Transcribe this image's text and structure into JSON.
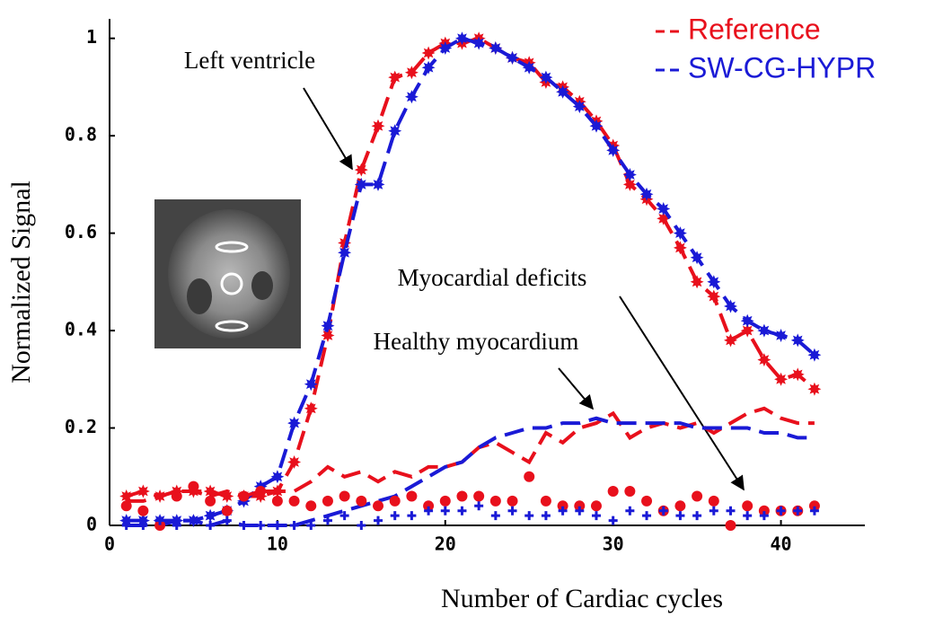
{
  "chart_data": {
    "type": "line",
    "xlabel": "Number of Cardiac cycles",
    "ylabel": "Normalized Signal",
    "x": [
      1,
      2,
      3,
      4,
      5,
      6,
      7,
      8,
      9,
      10,
      11,
      12,
      13,
      14,
      15,
      16,
      17,
      18,
      19,
      20,
      21,
      22,
      23,
      24,
      25,
      26,
      27,
      28,
      29,
      30,
      31,
      32,
      33,
      34,
      35,
      36,
      37,
      38,
      39,
      40,
      41,
      42
    ],
    "xlim": [
      0,
      45
    ],
    "ylim": [
      0,
      1.04
    ],
    "xticks": [
      0,
      10,
      20,
      30,
      40
    ],
    "yticks": [
      0,
      0.2,
      0.4,
      0.6,
      0.8,
      1
    ],
    "legend": "upper right",
    "annotations": [
      "Left ventricle",
      "Myocardial deficits",
      "Healthy myocardium"
    ],
    "series": [
      {
        "name": "Reference",
        "color": "#e8101c",
        "line": "dashed",
        "marker": "star",
        "values": [
          0.06,
          0.07,
          0.06,
          0.07,
          0.07,
          0.07,
          0.06,
          0.06,
          0.06,
          0.07,
          0.13,
          0.24,
          0.39,
          0.58,
          0.73,
          0.82,
          0.92,
          0.93,
          0.97,
          0.99,
          0.99,
          1.0,
          0.98,
          0.96,
          0.95,
          0.91,
          0.9,
          0.87,
          0.83,
          0.78,
          0.7,
          0.67,
          0.63,
          0.57,
          0.5,
          0.47,
          0.38,
          0.4,
          0.34,
          0.3,
          0.31,
          0.28
        ]
      },
      {
        "name": "SW-CG-HYPR",
        "color": "#1a1ad6",
        "line": "dashed",
        "marker": "star",
        "values": [
          0.01,
          0.01,
          0.01,
          0.01,
          0.01,
          0.02,
          0.03,
          0.05,
          0.08,
          0.1,
          0.21,
          0.29,
          0.41,
          0.56,
          0.7,
          0.7,
          0.81,
          0.88,
          0.94,
          0.98,
          1.0,
          0.99,
          0.98,
          0.96,
          0.94,
          0.92,
          0.89,
          0.86,
          0.82,
          0.77,
          0.72,
          0.68,
          0.65,
          0.6,
          0.55,
          0.5,
          0.45,
          0.42,
          0.4,
          0.39,
          0.38,
          0.35
        ]
      },
      {
        "color": "#e8101c",
        "line": "dashed",
        "marker": "none",
        "values": [
          0.05,
          0.05,
          0.06,
          0.07,
          0.07,
          0.06,
          0.07,
          0.06,
          0.07,
          0.07,
          0.07,
          0.09,
          0.12,
          0.1,
          0.11,
          0.09,
          0.11,
          0.1,
          0.12,
          0.12,
          0.13,
          0.16,
          0.17,
          0.15,
          0.13,
          0.19,
          0.17,
          0.2,
          0.21,
          0.23,
          0.18,
          0.2,
          0.21,
          0.2,
          0.21,
          0.19,
          0.21,
          0.23,
          0.24,
          0.22,
          0.21,
          0.21
        ]
      },
      {
        "color": "#1a1ad6",
        "line": "dashed",
        "marker": "none",
        "values": [
          0.0,
          0.0,
          0.0,
          0.01,
          0.01,
          0.0,
          0.01,
          0.0,
          0.0,
          0.0,
          0.0,
          0.01,
          0.02,
          0.03,
          0.04,
          0.05,
          0.06,
          0.08,
          0.1,
          0.12,
          0.13,
          0.16,
          0.18,
          0.19,
          0.2,
          0.2,
          0.21,
          0.21,
          0.22,
          0.21,
          0.21,
          0.21,
          0.21,
          0.21,
          0.2,
          0.2,
          0.2,
          0.2,
          0.19,
          0.19,
          0.18,
          0.18
        ]
      },
      {
        "color": "#e8101c",
        "line": "none",
        "marker": "circle",
        "values": [
          0.04,
          0.03,
          0.0,
          0.06,
          0.08,
          0.05,
          0.03,
          0.06,
          0.07,
          0.05,
          0.05,
          0.04,
          0.05,
          0.06,
          0.05,
          0.04,
          0.05,
          0.06,
          0.04,
          0.05,
          0.06,
          0.06,
          0.05,
          0.05,
          0.1,
          0.05,
          0.04,
          0.04,
          0.04,
          0.07,
          0.07,
          0.05,
          0.03,
          0.04,
          0.06,
          0.05,
          0.0,
          0.04,
          0.03,
          0.03,
          0.03,
          0.04
        ]
      },
      {
        "color": "#1a1ad6",
        "line": "none",
        "marker": "plus",
        "values": [
          0.0,
          0.0,
          0.01,
          0.0,
          0.01,
          0.0,
          0.01,
          0.0,
          0.0,
          0.0,
          0.0,
          0.0,
          0.01,
          0.02,
          0.0,
          0.01,
          0.02,
          0.02,
          0.03,
          0.03,
          0.03,
          0.04,
          0.02,
          0.03,
          0.02,
          0.02,
          0.03,
          0.03,
          0.02,
          0.01,
          0.03,
          0.02,
          0.03,
          0.02,
          0.02,
          0.03,
          0.03,
          0.02,
          0.02,
          0.03,
          0.03,
          0.03
        ]
      }
    ]
  }
}
